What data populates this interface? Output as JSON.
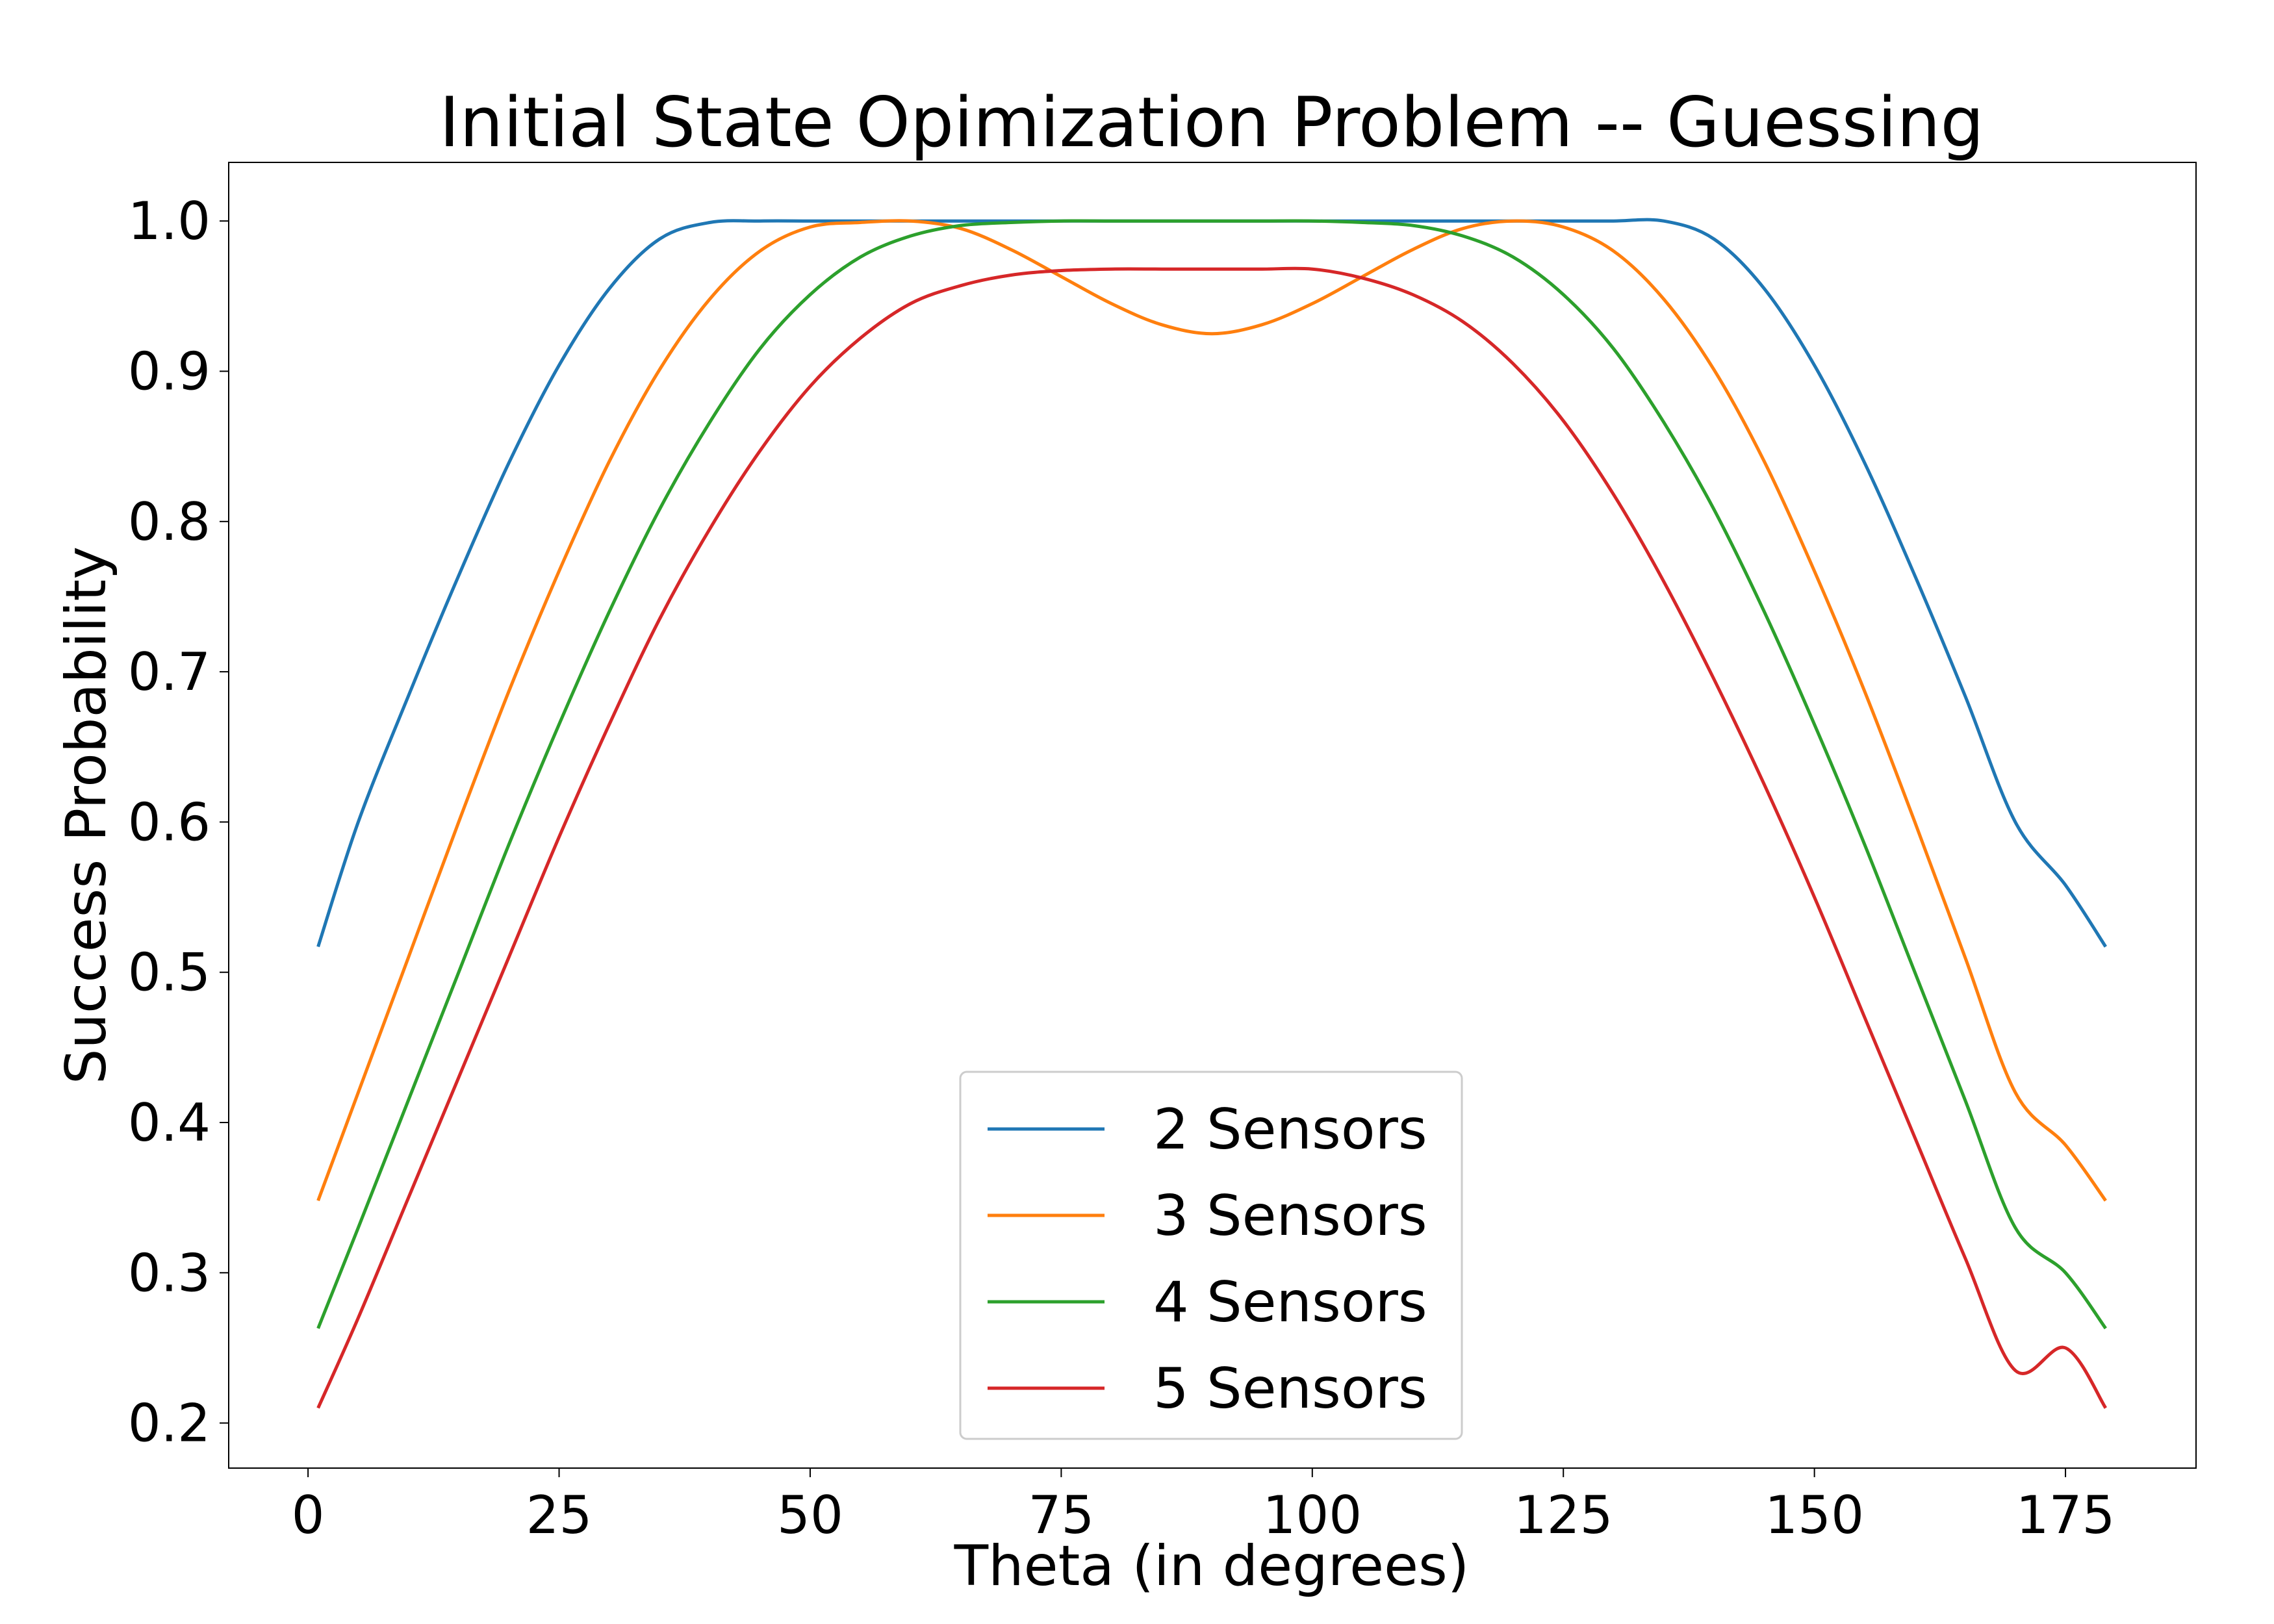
{
  "chart_data": {
    "type": "line",
    "title": "Initial State Opimization Problem -- Guessing",
    "xlabel": "Theta (in degrees)",
    "ylabel": "Success Probability",
    "xlim": [
      -7.9,
      188.0
    ],
    "ylim": [
      0.17,
      1.039
    ],
    "x_ticks": [
      0,
      25,
      50,
      75,
      100,
      125,
      150,
      175
    ],
    "y_ticks": [
      0.2,
      0.3,
      0.4,
      0.5,
      0.6,
      0.7,
      0.8,
      0.9,
      1.0
    ],
    "x_tick_labels": [
      "0",
      "25",
      "50",
      "75",
      "100",
      "125",
      "150",
      "175"
    ],
    "y_tick_labels": [
      "0.2",
      "0.3",
      "0.4",
      "0.5",
      "0.6",
      "0.7",
      "0.8",
      "0.9",
      "1.0"
    ],
    "grid": false,
    "legend_position": "bottom-center",
    "series": [
      {
        "name": "2 Sensors",
        "color": "#1f77b4",
        "x": [
          1,
          5,
          10,
          15,
          20,
          25,
          30,
          35,
          40,
          45,
          50,
          55,
          60,
          65,
          70,
          75,
          80,
          85,
          90,
          95,
          100,
          105,
          110,
          115,
          120,
          125,
          130,
          135,
          140,
          145,
          150,
          155,
          160,
          165,
          170,
          175,
          179
        ],
        "y": [
          0.517,
          0.6,
          0.684,
          0.764,
          0.839,
          0.904,
          0.955,
          0.988,
          0.999,
          1.0,
          1.0,
          1.0,
          1.0,
          1.0,
          1.0,
          1.0,
          1.0,
          1.0,
          1.0,
          1.0,
          1.0,
          1.0,
          1.0,
          1.0,
          1.0,
          1.0,
          1.0,
          1.0,
          0.988,
          0.955,
          0.904,
          0.839,
          0.764,
          0.684,
          0.6,
          0.558,
          0.517
        ]
      },
      {
        "name": "3 Sensors",
        "color": "#ff7f0e",
        "x": [
          1,
          5,
          10,
          15,
          20,
          25,
          30,
          35,
          40,
          45,
          50,
          55,
          60,
          65,
          70,
          75,
          80,
          85,
          90,
          95,
          100,
          105,
          110,
          115,
          120,
          125,
          130,
          135,
          140,
          145,
          150,
          155,
          160,
          165,
          170,
          175,
          179
        ],
        "y": [
          0.348,
          0.42,
          0.51,
          0.6,
          0.687,
          0.767,
          0.84,
          0.901,
          0.948,
          0.98,
          0.996,
          0.999,
          1.0,
          0.995,
          0.981,
          0.963,
          0.945,
          0.931,
          0.925,
          0.931,
          0.945,
          0.963,
          0.981,
          0.995,
          1.0,
          0.996,
          0.98,
          0.948,
          0.901,
          0.84,
          0.767,
          0.687,
          0.6,
          0.51,
          0.42,
          0.385,
          0.348
        ]
      },
      {
        "name": "4 Sensors",
        "color": "#2ca02c",
        "x": [
          1,
          5,
          10,
          15,
          20,
          25,
          30,
          35,
          40,
          45,
          50,
          55,
          60,
          65,
          70,
          75,
          80,
          85,
          90,
          95,
          100,
          105,
          110,
          115,
          120,
          125,
          130,
          135,
          140,
          145,
          150,
          155,
          160,
          165,
          170,
          175,
          179
        ],
        "y": [
          0.263,
          0.33,
          0.415,
          0.5,
          0.585,
          0.665,
          0.74,
          0.808,
          0.866,
          0.915,
          0.951,
          0.976,
          0.99,
          0.997,
          0.999,
          1.0,
          1.0,
          1.0,
          1.0,
          1.0,
          1.0,
          0.999,
          0.997,
          0.99,
          0.976,
          0.951,
          0.915,
          0.866,
          0.808,
          0.74,
          0.665,
          0.585,
          0.5,
          0.415,
          0.33,
          0.3,
          0.263
        ]
      },
      {
        "name": "5 Sensors",
        "color": "#d62728",
        "x": [
          1,
          5,
          10,
          15,
          20,
          25,
          30,
          35,
          40,
          45,
          50,
          55,
          60,
          65,
          70,
          75,
          80,
          85,
          90,
          95,
          100,
          105,
          110,
          115,
          120,
          125,
          130,
          135,
          140,
          145,
          150,
          155,
          160,
          165,
          170,
          175,
          179
        ],
        "y": [
          0.21,
          0.27,
          0.35,
          0.43,
          0.51,
          0.59,
          0.665,
          0.735,
          0.795,
          0.847,
          0.89,
          0.922,
          0.945,
          0.957,
          0.964,
          0.967,
          0.968,
          0.968,
          0.968,
          0.968,
          0.968,
          0.962,
          0.951,
          0.933,
          0.905,
          0.867,
          0.818,
          0.76,
          0.695,
          0.625,
          0.55,
          0.47,
          0.39,
          0.31,
          0.235,
          0.25,
          0.21
        ]
      }
    ]
  }
}
